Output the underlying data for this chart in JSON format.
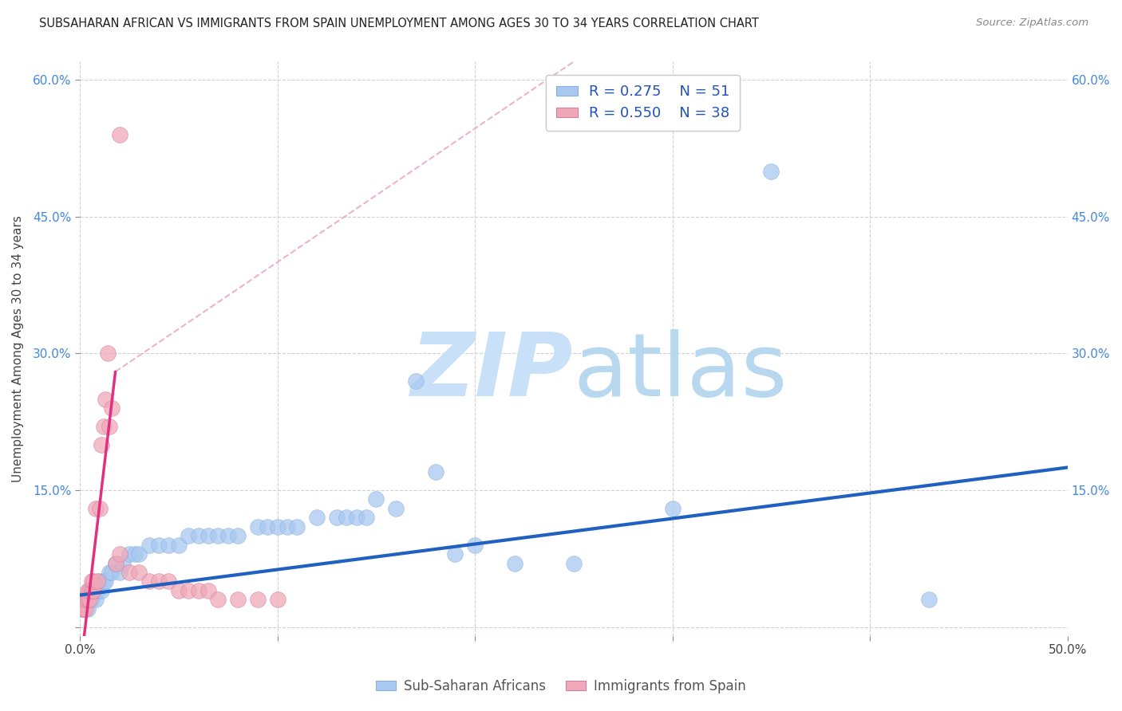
{
  "title": "SUBSAHARAN AFRICAN VS IMMIGRANTS FROM SPAIN UNEMPLOYMENT AMONG AGES 30 TO 34 YEARS CORRELATION CHART",
  "source": "Source: ZipAtlas.com",
  "ylabel": "Unemployment Among Ages 30 to 34 years",
  "xlim": [
    0.0,
    0.5
  ],
  "ylim": [
    -0.01,
    0.62
  ],
  "xticks": [
    0.0,
    0.1,
    0.2,
    0.3,
    0.4,
    0.5
  ],
  "yticks": [
    0.0,
    0.15,
    0.3,
    0.45,
    0.6
  ],
  "ytick_labels": [
    "",
    "15.0%",
    "30.0%",
    "45.0%",
    "60.0%"
  ],
  "xtick_labels": [
    "0.0%",
    "",
    "",
    "",
    "",
    "50.0%"
  ],
  "blue_R": 0.275,
  "blue_N": 51,
  "pink_R": 0.55,
  "pink_N": 38,
  "blue_color": "#a8c8f0",
  "pink_color": "#f0a8b8",
  "blue_line_color": "#2060c0",
  "pink_line_color": "#e03080",
  "pink_dash_color": "#e8a0c0",
  "blue_scatter": [
    [
      0.002,
      0.02
    ],
    [
      0.003,
      0.03
    ],
    [
      0.004,
      0.02
    ],
    [
      0.005,
      0.04
    ],
    [
      0.006,
      0.03
    ],
    [
      0.007,
      0.04
    ],
    [
      0.008,
      0.03
    ],
    [
      0.009,
      0.04
    ],
    [
      0.01,
      0.05
    ],
    [
      0.011,
      0.04
    ],
    [
      0.012,
      0.05
    ],
    [
      0.013,
      0.05
    ],
    [
      0.015,
      0.06
    ],
    [
      0.016,
      0.06
    ],
    [
      0.018,
      0.07
    ],
    [
      0.02,
      0.06
    ],
    [
      0.022,
      0.07
    ],
    [
      0.025,
      0.08
    ],
    [
      0.028,
      0.08
    ],
    [
      0.03,
      0.08
    ],
    [
      0.035,
      0.09
    ],
    [
      0.04,
      0.09
    ],
    [
      0.045,
      0.09
    ],
    [
      0.05,
      0.09
    ],
    [
      0.055,
      0.1
    ],
    [
      0.06,
      0.1
    ],
    [
      0.065,
      0.1
    ],
    [
      0.07,
      0.1
    ],
    [
      0.075,
      0.1
    ],
    [
      0.08,
      0.1
    ],
    [
      0.09,
      0.11
    ],
    [
      0.095,
      0.11
    ],
    [
      0.1,
      0.11
    ],
    [
      0.105,
      0.11
    ],
    [
      0.11,
      0.11
    ],
    [
      0.12,
      0.12
    ],
    [
      0.13,
      0.12
    ],
    [
      0.135,
      0.12
    ],
    [
      0.14,
      0.12
    ],
    [
      0.145,
      0.12
    ],
    [
      0.15,
      0.14
    ],
    [
      0.16,
      0.13
    ],
    [
      0.17,
      0.27
    ],
    [
      0.18,
      0.17
    ],
    [
      0.19,
      0.08
    ],
    [
      0.2,
      0.09
    ],
    [
      0.22,
      0.07
    ],
    [
      0.25,
      0.07
    ],
    [
      0.3,
      0.13
    ],
    [
      0.35,
      0.5
    ],
    [
      0.43,
      0.03
    ]
  ],
  "pink_scatter": [
    [
      0.001,
      0.02
    ],
    [
      0.002,
      0.02
    ],
    [
      0.002,
      0.03
    ],
    [
      0.003,
      0.02
    ],
    [
      0.003,
      0.03
    ],
    [
      0.004,
      0.03
    ],
    [
      0.004,
      0.04
    ],
    [
      0.005,
      0.03
    ],
    [
      0.005,
      0.04
    ],
    [
      0.006,
      0.04
    ],
    [
      0.006,
      0.05
    ],
    [
      0.007,
      0.04
    ],
    [
      0.007,
      0.05
    ],
    [
      0.008,
      0.13
    ],
    [
      0.009,
      0.05
    ],
    [
      0.01,
      0.13
    ],
    [
      0.011,
      0.2
    ],
    [
      0.012,
      0.22
    ],
    [
      0.013,
      0.25
    ],
    [
      0.014,
      0.3
    ],
    [
      0.015,
      0.22
    ],
    [
      0.016,
      0.24
    ],
    [
      0.018,
      0.07
    ],
    [
      0.02,
      0.08
    ],
    [
      0.025,
      0.06
    ],
    [
      0.03,
      0.06
    ],
    [
      0.035,
      0.05
    ],
    [
      0.04,
      0.05
    ],
    [
      0.045,
      0.05
    ],
    [
      0.05,
      0.04
    ],
    [
      0.055,
      0.04
    ],
    [
      0.06,
      0.04
    ],
    [
      0.065,
      0.04
    ],
    [
      0.07,
      0.03
    ],
    [
      0.08,
      0.03
    ],
    [
      0.09,
      0.03
    ],
    [
      0.1,
      0.03
    ],
    [
      0.02,
      0.54
    ]
  ],
  "blue_line": [
    [
      0.0,
      0.035
    ],
    [
      0.5,
      0.175
    ]
  ],
  "pink_line": [
    [
      0.0,
      -0.05
    ],
    [
      0.018,
      0.28
    ]
  ],
  "pink_dash_line": [
    [
      0.018,
      0.28
    ],
    [
      0.25,
      0.62
    ]
  ],
  "watermark_zip": "ZIP",
  "watermark_atlas": "atlas",
  "watermark_color": "#c8e0f8",
  "background_color": "#ffffff",
  "grid_color": "#cccccc"
}
